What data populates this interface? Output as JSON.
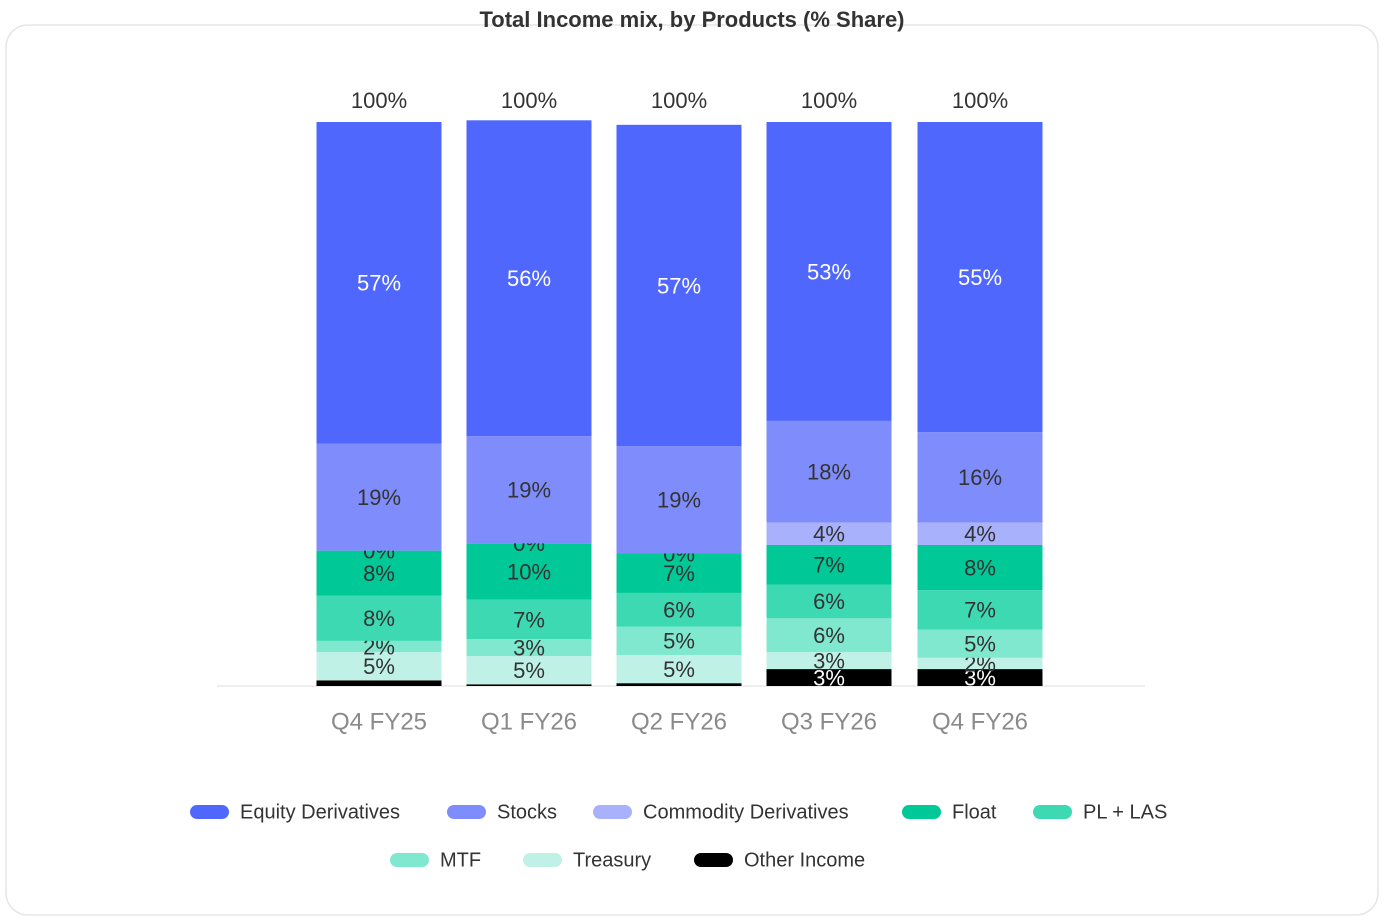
{
  "chart_data": {
    "type": "stacked_bar",
    "title": "Total Income mix, by Products (% Share)",
    "categories": [
      "Q4 FY25",
      "Q1 FY26",
      "Q2 FY26",
      "Q3 FY26",
      "Q4 FY26"
    ],
    "ylim": [
      0,
      100
    ],
    "totals": [
      100,
      100,
      100,
      100,
      100
    ],
    "total_labels": [
      "100%",
      "100%",
      "100%",
      "100%",
      "100%"
    ],
    "series": [
      {
        "name": "Equity Derivatives",
        "color": "#5067fd",
        "values": [
          57,
          56,
          57,
          53,
          55
        ],
        "value_labels": [
          "57%",
          "56%",
          "57%",
          "53%",
          "55%"
        ]
      },
      {
        "name": "Stocks",
        "color": "#7f8cfb",
        "values": [
          19,
          19,
          19,
          18,
          16
        ],
        "value_labels": [
          "19%",
          "19%",
          "19%",
          "18%",
          "16%"
        ]
      },
      {
        "name": "Commodity Derivatives",
        "color": "#a8b1fb",
        "values": [
          0,
          0,
          0,
          4,
          4
        ],
        "value_labels": [
          "0%",
          "0%",
          "0%",
          "4%",
          "4%"
        ]
      },
      {
        "name": "Float",
        "color": "#00c896",
        "values": [
          8,
          10,
          7,
          7,
          8
        ],
        "value_labels": [
          "8%",
          "10%",
          "7%",
          "7%",
          "8%"
        ]
      },
      {
        "name": "PL + LAS",
        "color": "#3dd9b3",
        "values": [
          8,
          7,
          6,
          6,
          7
        ],
        "value_labels": [
          "8%",
          "7%",
          "6%",
          "6%",
          "7%"
        ]
      },
      {
        "name": "MTF",
        "color": "#80e8cf",
        "values": [
          2,
          3,
          5,
          6,
          5
        ],
        "value_labels": [
          "2%",
          "3%",
          "5%",
          "6%",
          "5%"
        ]
      },
      {
        "name": "Treasury",
        "color": "#c0f1e6",
        "values": [
          5,
          5,
          5,
          3,
          2
        ],
        "value_labels": [
          "5%",
          "5%",
          "5%",
          "3%",
          "2%"
        ]
      },
      {
        "name": "Other Income",
        "color": "#000000",
        "values": [
          1,
          0.3,
          0.5,
          3,
          3
        ],
        "value_labels": [
          null,
          null,
          null,
          "3%",
          "3%"
        ]
      }
    ]
  }
}
